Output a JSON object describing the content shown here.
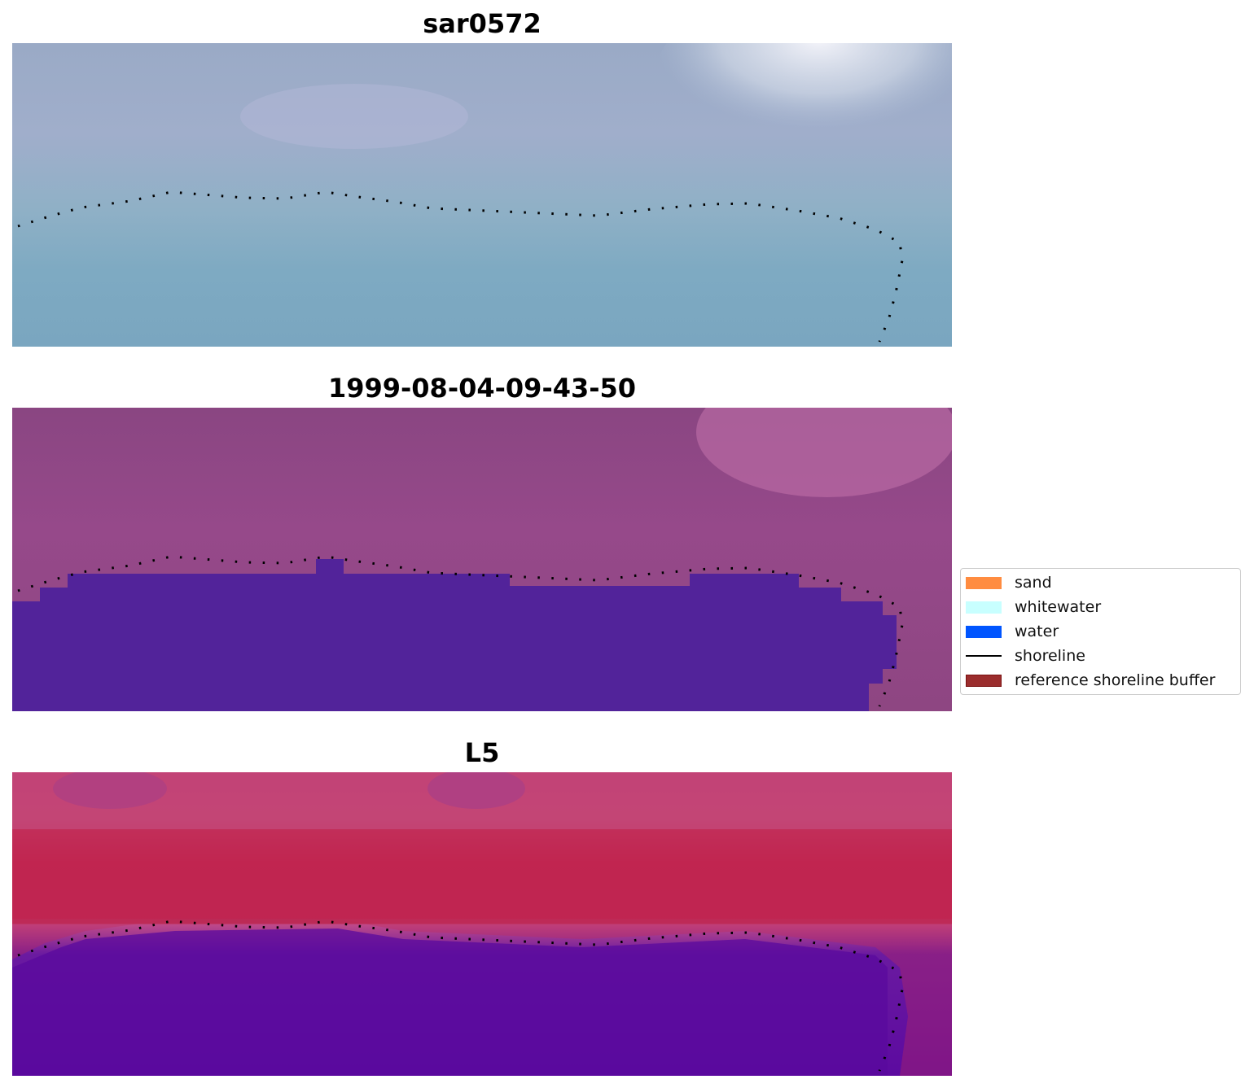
{
  "panels": [
    {
      "title": "sar0572"
    },
    {
      "title": "1999-08-04-09-43-50"
    },
    {
      "title": "L5"
    }
  ],
  "legend": {
    "items": [
      {
        "label": "sand",
        "color": "#ff8c40",
        "kind": "patch"
      },
      {
        "label": "whitewater",
        "color": "#c8ffff",
        "kind": "patch"
      },
      {
        "label": "water",
        "color": "#0055ff",
        "kind": "patch"
      },
      {
        "label": "shoreline",
        "color": "#000000",
        "kind": "line"
      },
      {
        "label": "reference shoreline buffer",
        "color": "#9b2d2d",
        "kind": "patch"
      }
    ]
  }
}
